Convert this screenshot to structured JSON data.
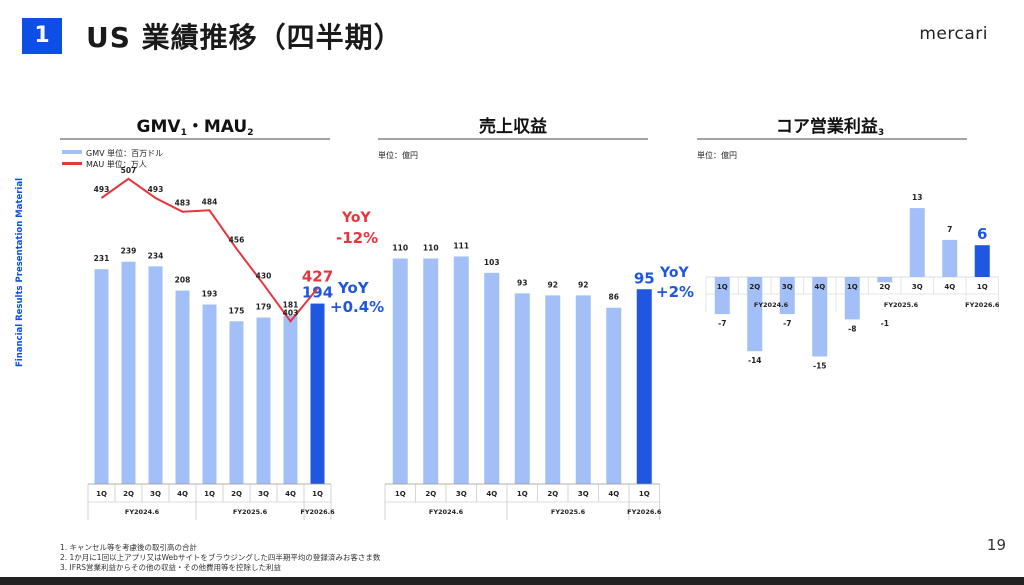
{
  "header": {
    "badge": "1",
    "title": "US 業績推移（四半期）",
    "logo": "mercari"
  },
  "sidebar_text": "Financial Results Presentation Material",
  "page_number": "19",
  "footnotes": [
    "1. キャンセル等を考慮後の取引高の合計",
    "2. 1か月に1回以上アプリ又はWebサイトをブラウジングした四半期平均の登録済みお客さま数",
    "3. IFRS営業利益からその他の収益・その他費用等を控除した利益"
  ],
  "colors": {
    "bar_light": "#a3bff7",
    "bar_dark": "#1f57e0",
    "line": "#e8343b",
    "badge": "#0d4fe6"
  },
  "chart_data": [
    {
      "type": "bar",
      "title": "GMV",
      "title_sup1": "1",
      "title_mid": "・MAU",
      "title_sup2": "2",
      "legend": [
        "GMV 単位：百万ドル",
        "MAU 単位：万人"
      ],
      "categories": [
        "1Q",
        "2Q",
        "3Q",
        "4Q",
        "1Q",
        "2Q",
        "3Q",
        "4Q",
        "1Q"
      ],
      "fiscal_years": [
        "FY2024.6",
        "FY2025.6",
        "FY2026.6"
      ],
      "series": [
        {
          "name": "GMV",
          "values": [
            231,
            239,
            234,
            208,
            193,
            175,
            179,
            181,
            194
          ]
        },
        {
          "name": "MAU",
          "type": "line",
          "values": [
            493,
            507,
            493,
            483,
            484,
            456,
            430,
            403,
            427
          ]
        }
      ],
      "highlight_bar_label": "194",
      "highlight_line_label": "427",
      "yoy_gmv": [
        "YoY",
        "+0.4%"
      ],
      "yoy_mau": [
        "YoY",
        "-12%"
      ]
    },
    {
      "type": "bar",
      "title": "売上収益",
      "unit": "単位：億円",
      "categories": [
        "1Q",
        "2Q",
        "3Q",
        "4Q",
        "1Q",
        "2Q",
        "3Q",
        "4Q",
        "1Q"
      ],
      "fiscal_years": [
        "FY2024.6",
        "FY2025.6",
        "FY2026.6"
      ],
      "values": [
        110,
        110,
        111,
        103,
        93,
        92,
        92,
        86,
        95
      ],
      "highlight_label": "95",
      "yoy": [
        "YoY",
        "+2%"
      ]
    },
    {
      "type": "bar",
      "title": "コア営業利益",
      "title_sup": "3",
      "unit": "単位：億円",
      "categories": [
        "1Q",
        "2Q",
        "3Q",
        "4Q",
        "1Q",
        "2Q",
        "3Q",
        "4Q",
        "1Q"
      ],
      "fiscal_years": [
        "FY2024.6",
        "FY2025.6",
        "FY2026.6"
      ],
      "values": [
        -7,
        -14,
        -7,
        -15,
        -8,
        -1,
        13,
        7,
        6
      ],
      "highlight_label": "6"
    }
  ]
}
